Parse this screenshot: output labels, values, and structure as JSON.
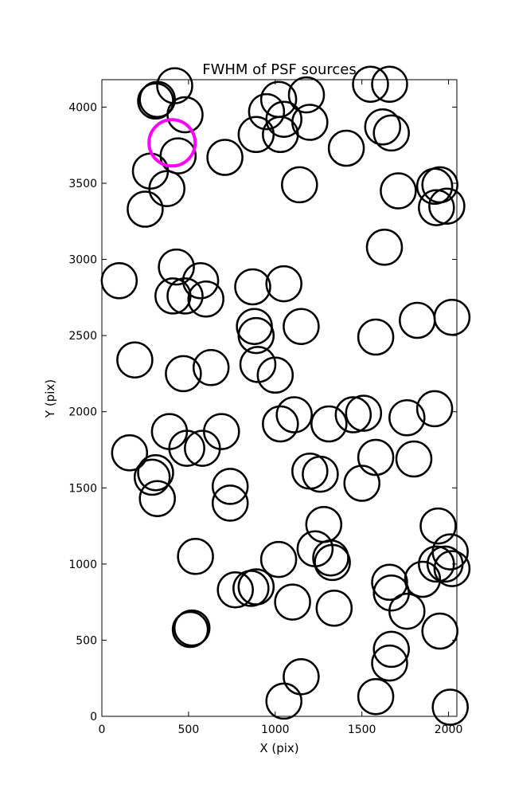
{
  "chart_data": {
    "type": "scatter",
    "title": "FWHM of PSF sources",
    "xlabel": "X (pix)",
    "ylabel": "Y (pix)",
    "xlim": [
      0,
      2048
    ],
    "ylim": [
      0,
      4180
    ],
    "x_ticks": [
      0,
      500,
      1000,
      1500,
      2000
    ],
    "y_ticks": [
      0,
      500,
      1000,
      1500,
      2000,
      2500,
      3000,
      3500,
      4000
    ],
    "grid": false,
    "marker": "open-circle",
    "marker_color": "#000000",
    "highlight_color": "#ff00ff",
    "highlight": {
      "x": 405,
      "y": 3765
    },
    "series": [
      {
        "points": [
          [
            310,
            4040
          ],
          [
            320,
            4050
          ],
          [
            420,
            4140
          ],
          [
            480,
            3950
          ],
          [
            280,
            3580
          ],
          [
            440,
            3680
          ],
          [
            375,
            3465
          ],
          [
            250,
            3330
          ],
          [
            710,
            3670
          ],
          [
            890,
            3820
          ],
          [
            1030,
            3820
          ],
          [
            950,
            3970
          ],
          [
            1020,
            4050
          ],
          [
            1180,
            4080
          ],
          [
            1200,
            3900
          ],
          [
            1050,
            3920
          ],
          [
            1140,
            3490
          ],
          [
            1410,
            3730
          ],
          [
            1550,
            4150
          ],
          [
            1660,
            4150
          ],
          [
            1620,
            3870
          ],
          [
            1670,
            3830
          ],
          [
            1710,
            3450
          ],
          [
            1920,
            3480
          ],
          [
            1950,
            3490
          ],
          [
            1930,
            3340
          ],
          [
            1990,
            3350
          ],
          [
            1630,
            3080
          ],
          [
            100,
            2860
          ],
          [
            430,
            2950
          ],
          [
            570,
            2860
          ],
          [
            410,
            2760
          ],
          [
            480,
            2760
          ],
          [
            600,
            2740
          ],
          [
            870,
            2820
          ],
          [
            1050,
            2840
          ],
          [
            880,
            2560
          ],
          [
            890,
            2500
          ],
          [
            1150,
            2560
          ],
          [
            1580,
            2490
          ],
          [
            1820,
            2600
          ],
          [
            2020,
            2620
          ],
          [
            190,
            2340
          ],
          [
            470,
            2250
          ],
          [
            630,
            2290
          ],
          [
            900,
            2310
          ],
          [
            1000,
            2240
          ],
          [
            390,
            1870
          ],
          [
            690,
            1870
          ],
          [
            1030,
            1920
          ],
          [
            1110,
            1980
          ],
          [
            1310,
            1920
          ],
          [
            1450,
            1980
          ],
          [
            1510,
            1990
          ],
          [
            1760,
            1960
          ],
          [
            1920,
            2020
          ],
          [
            160,
            1730
          ],
          [
            310,
            1600
          ],
          [
            290,
            1570
          ],
          [
            320,
            1430
          ],
          [
            490,
            1760
          ],
          [
            580,
            1760
          ],
          [
            740,
            1510
          ],
          [
            740,
            1400
          ],
          [
            1200,
            1610
          ],
          [
            1260,
            1590
          ],
          [
            1500,
            1530
          ],
          [
            1580,
            1700
          ],
          [
            1800,
            1690
          ],
          [
            540,
            1050
          ],
          [
            1020,
            1030
          ],
          [
            1230,
            1100
          ],
          [
            1280,
            1260
          ],
          [
            1320,
            1040
          ],
          [
            1330,
            1010
          ],
          [
            1340,
            710
          ],
          [
            770,
            830
          ],
          [
            860,
            840
          ],
          [
            890,
            850
          ],
          [
            1100,
            750
          ],
          [
            1660,
            880
          ],
          [
            1670,
            810
          ],
          [
            1760,
            690
          ],
          [
            1850,
            900
          ],
          [
            1930,
            1000
          ],
          [
            1940,
            1250
          ],
          [
            1980,
            1000
          ],
          [
            2010,
            1080
          ],
          [
            2020,
            970
          ],
          [
            1950,
            560
          ],
          [
            510,
            570
          ],
          [
            520,
            580
          ],
          [
            1150,
            260
          ],
          [
            1050,
            100
          ],
          [
            1580,
            130
          ],
          [
            1660,
            350
          ],
          [
            1670,
            440
          ],
          [
            2010,
            60
          ]
        ]
      }
    ]
  }
}
